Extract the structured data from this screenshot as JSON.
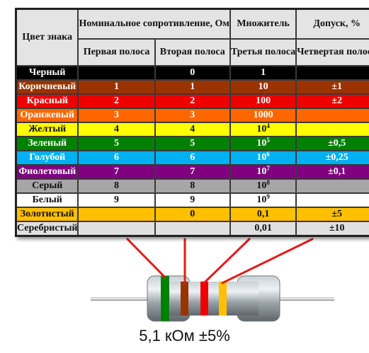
{
  "table": {
    "headers": {
      "color": "Цвет знака",
      "nominal": "Номинальное сопротивление, Ом",
      "multiplier": "Множитель",
      "tolerance": "Допуск, %",
      "band1": "Первая полоса",
      "band2": "Вторая полоса",
      "band3": "Третья полоса",
      "band4": "Четвертая полоса"
    },
    "rows": [
      {
        "name": "Черный",
        "bg": "#000000",
        "fg": "#ffffff",
        "d1": "",
        "d2": "0",
        "mult": "1",
        "exp": "",
        "tol": ""
      },
      {
        "name": "Коричневый",
        "bg": "#993300",
        "fg": "#ffffff",
        "d1": "1",
        "d2": "1",
        "mult": "10",
        "exp": "",
        "tol": "±1"
      },
      {
        "name": "Красный",
        "bg": "#ee0000",
        "fg": "#ffffff",
        "d1": "2",
        "d2": "2",
        "mult": "100",
        "exp": "",
        "tol": "±2"
      },
      {
        "name": "Оранжевый",
        "bg": "#ff6600",
        "fg": "#ffffff",
        "d1": "3",
        "d2": "3",
        "mult": "1000",
        "exp": "",
        "tol": ""
      },
      {
        "name": "Желтый",
        "bg": "#ffff00",
        "fg": "#111111",
        "d1": "4",
        "d2": "4",
        "mult": "10",
        "exp": "4",
        "tol": ""
      },
      {
        "name": "Зеленый",
        "bg": "#008000",
        "fg": "#ffffff",
        "d1": "5",
        "d2": "5",
        "mult": "10",
        "exp": "5",
        "tol": "±0,5"
      },
      {
        "name": "Голубой",
        "bg": "#00b0f0",
        "fg": "#ffffff",
        "d1": "6",
        "d2": "6",
        "mult": "10",
        "exp": "6",
        "tol": "±0,25"
      },
      {
        "name": "Фиолетовый",
        "bg": "#800080",
        "fg": "#ffffff",
        "d1": "7",
        "d2": "7",
        "mult": "10",
        "exp": "7",
        "tol": "±0,1"
      },
      {
        "name": "Серый",
        "bg": "#a6a6a6",
        "fg": "#111111",
        "d1": "8",
        "d2": "8",
        "mult": "10",
        "exp": "8",
        "tol": ""
      },
      {
        "name": "Белый",
        "bg": "#ffffff",
        "fg": "#111111",
        "d1": "9",
        "d2": "9",
        "mult": "10",
        "exp": "9",
        "tol": ""
      },
      {
        "name": "Золотистый",
        "bg": "#ffc000",
        "fg": "#111111",
        "d1": "",
        "d2": "0",
        "mult": "0,1",
        "exp": "",
        "tol": "±5"
      },
      {
        "name": "Серебристый",
        "bg": "#e0e0e0",
        "fg": "#111111",
        "d1": "",
        "d2": "",
        "mult": "0,01",
        "exp": "",
        "tol": "±10"
      }
    ]
  },
  "resistor": {
    "bands": [
      "#008000",
      "#993300",
      "#ee0000",
      "#ffc000"
    ],
    "leader_color": "#e31b1b",
    "caption": "5,1 кОм ±5%"
  }
}
